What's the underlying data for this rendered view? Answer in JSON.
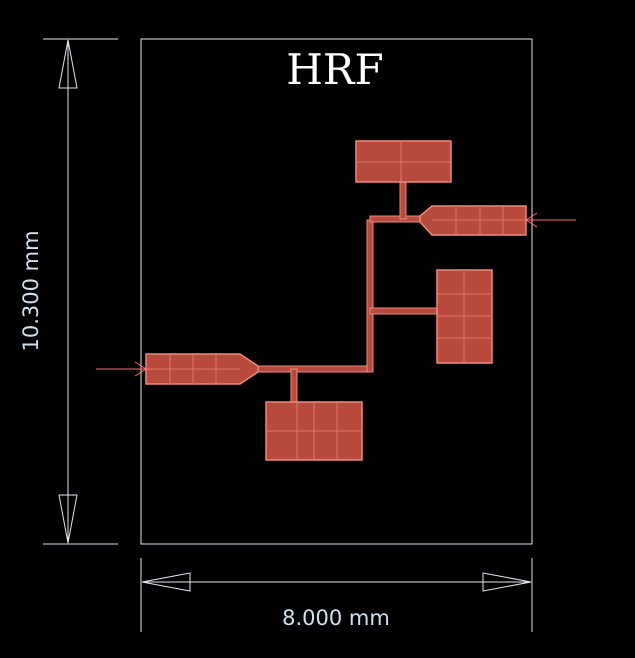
{
  "title": "HRF",
  "dimension_width": "8.000 mm",
  "dimension_height": "10.300 mm"
}
